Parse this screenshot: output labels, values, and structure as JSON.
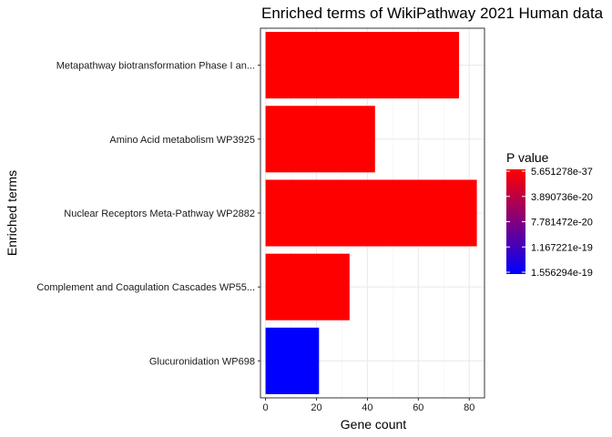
{
  "chart_data": {
    "type": "bar",
    "orientation": "horizontal",
    "title": "Enriched terms of WikiPathway 2021 Human data",
    "xlabel": "Gene count",
    "ylabel": "Enriched terms",
    "xlim": [
      -2,
      86
    ],
    "xticks": [
      0,
      20,
      40,
      60,
      80
    ],
    "grid": true,
    "categories": [
      "Metapathway biotransformation Phase I an...",
      "Amino Acid metabolism WP3925",
      "Nuclear Receptors Meta-Pathway WP2882",
      "Complement and Coagulation Cascades WP55...",
      "Glucuronidation WP698"
    ],
    "values": [
      76,
      43,
      83,
      33,
      21
    ],
    "bar_colors": [
      "#ff0000",
      "#ff0000",
      "#ff0000",
      "#ff0000",
      "#0000ff"
    ],
    "legend": {
      "title": "P value",
      "position": "right",
      "gradient": [
        "#ff0000",
        "#0000ff"
      ],
      "labels": [
        "5.651278e-37",
        "3.890736e-20",
        "7.781472e-20",
        "1.167221e-19",
        "1.556294e-19"
      ]
    }
  }
}
